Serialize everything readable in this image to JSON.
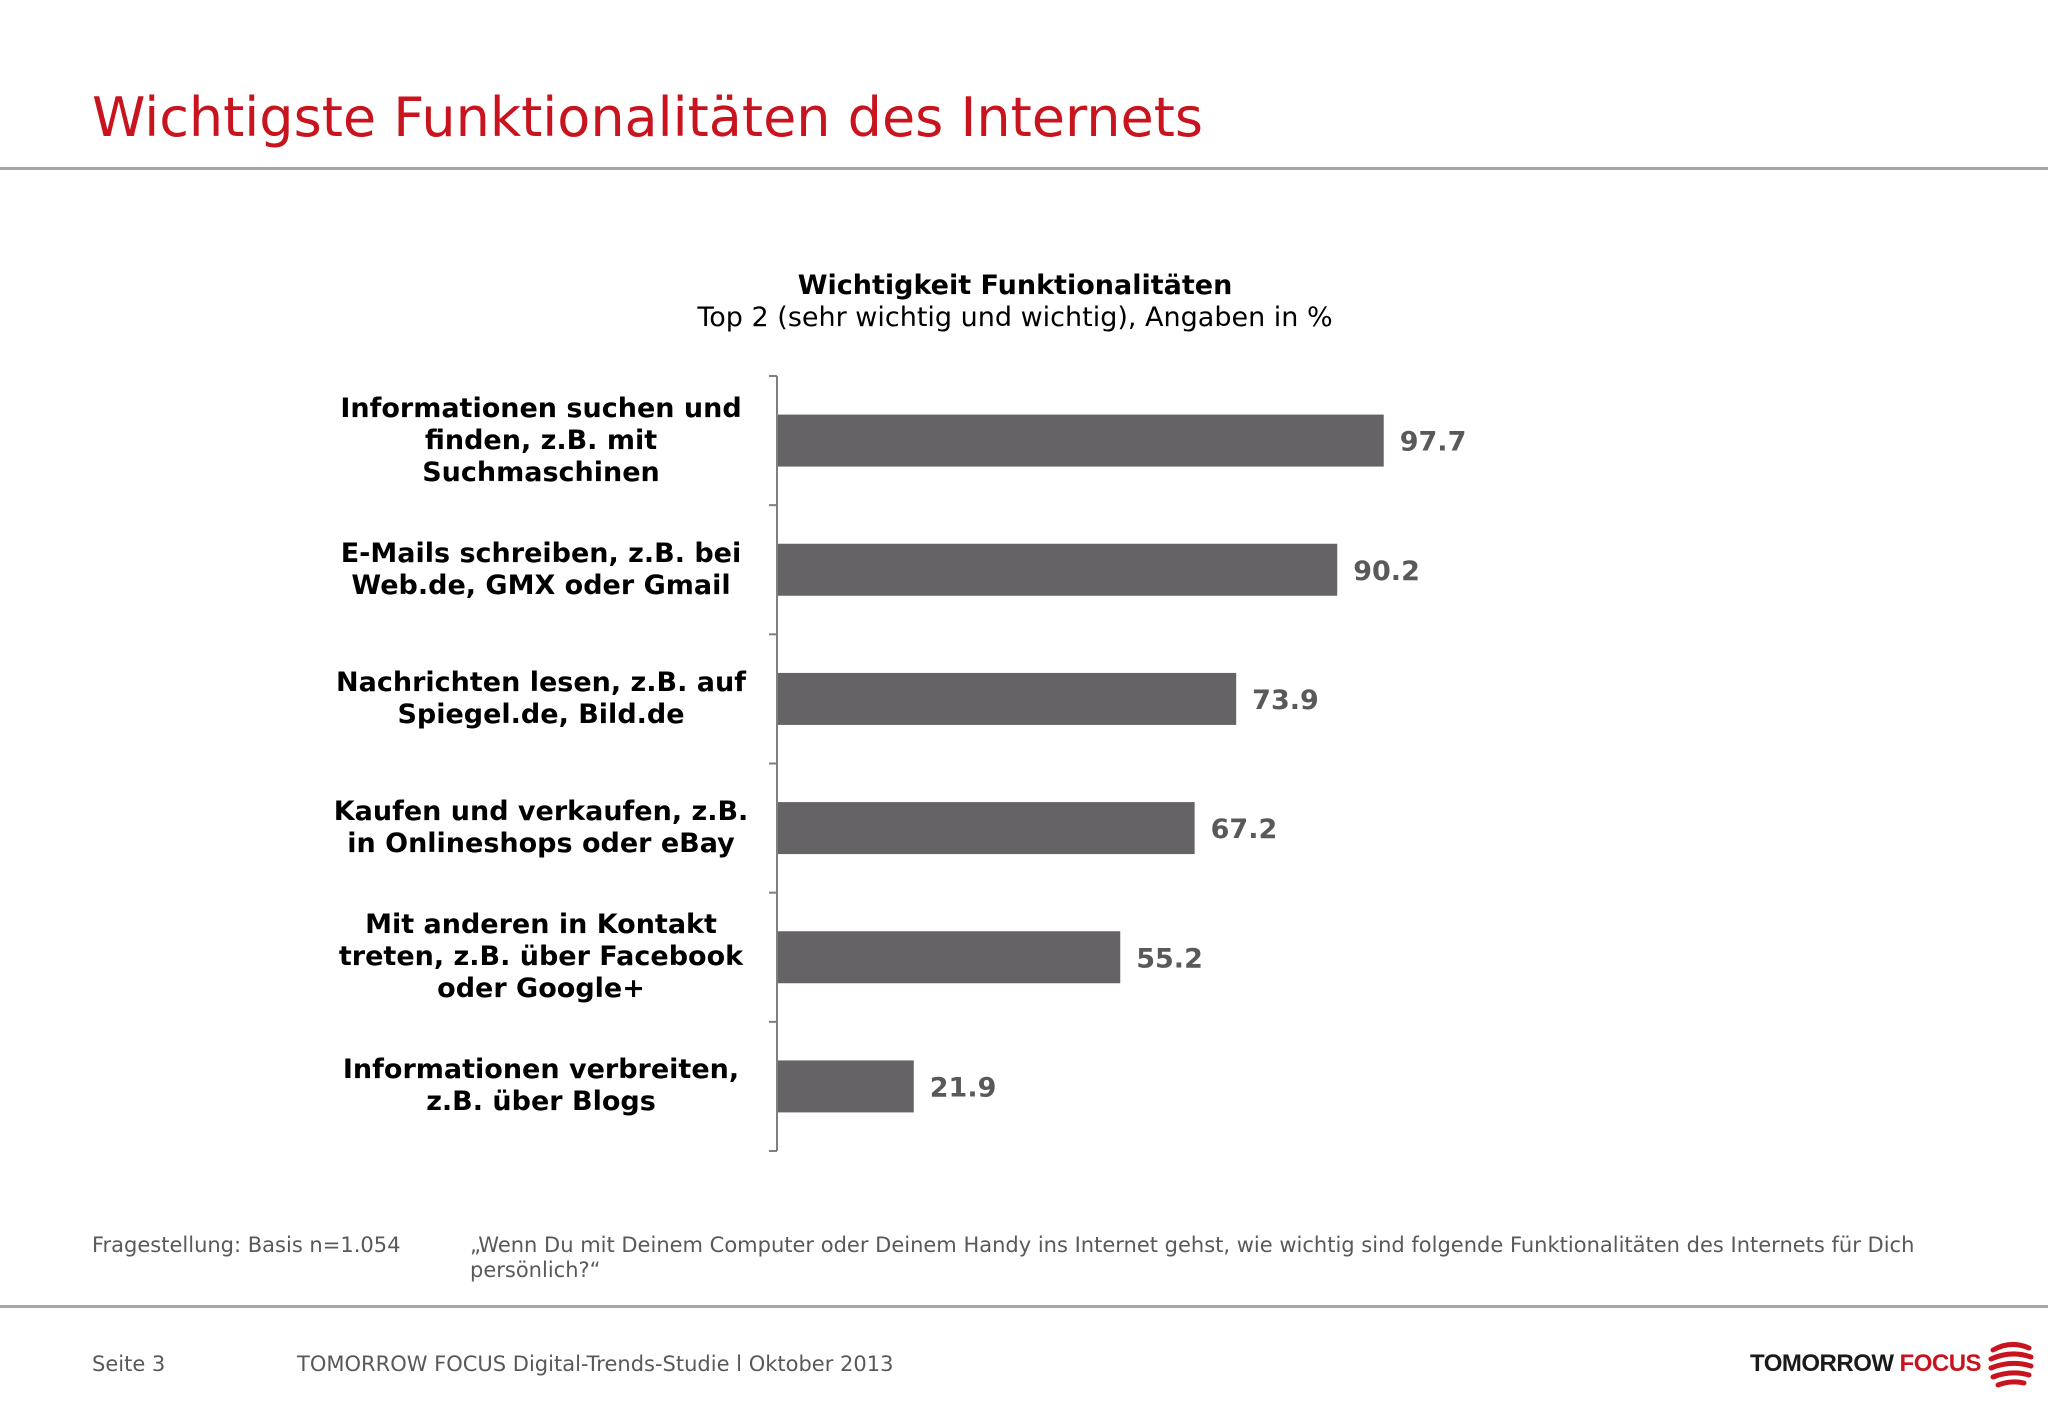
{
  "page": {
    "title": "Wichtigste Funktionalitäten des Internets",
    "note_label": "Fragestellung: Basis n=1.054",
    "note_text": "„Wenn Du mit Deinem Computer oder Deinem Handy ins Internet gehst, wie wichtig sind folgende Funktionalitäten des Internets für Dich persönlich?“",
    "page_number": "Seite 3",
    "study": "TOMORROW FOCUS Digital-Trends-Studie l Oktober 2013",
    "logo_word1": "TOMORROW",
    "logo_word2": "FOCUS",
    "brand_color": "#c8141e"
  },
  "chart_data": {
    "type": "bar",
    "orientation": "horizontal",
    "title": "Wichtigkeit Funktionalitäten",
    "subtitle": "Top 2 (sehr wichtig und wichtig), Angaben in %",
    "categories": [
      "Informationen suchen und finden, z.B. mit Suchmaschinen",
      "E-Mails schreiben, z.B. bei Web.de, GMX oder Gmail",
      "Nachrichten lesen, z.B. auf Spiegel.de, Bild.de",
      "Kaufen und verkaufen, z.B. in Onlineshops oder eBay",
      "Mit anderen in Kontakt treten, z.B. über Facebook oder Google+",
      "Informationen verbreiten, z.B. über Blogs"
    ],
    "values": [
      97.7,
      90.2,
      73.9,
      67.2,
      55.2,
      21.9
    ],
    "value_labels": [
      "97.7",
      "90.2",
      "73.9",
      "67.2",
      "55.2",
      "21.9"
    ],
    "xlim": [
      0,
      100
    ],
    "bar_color": "#656366",
    "grid": false
  }
}
